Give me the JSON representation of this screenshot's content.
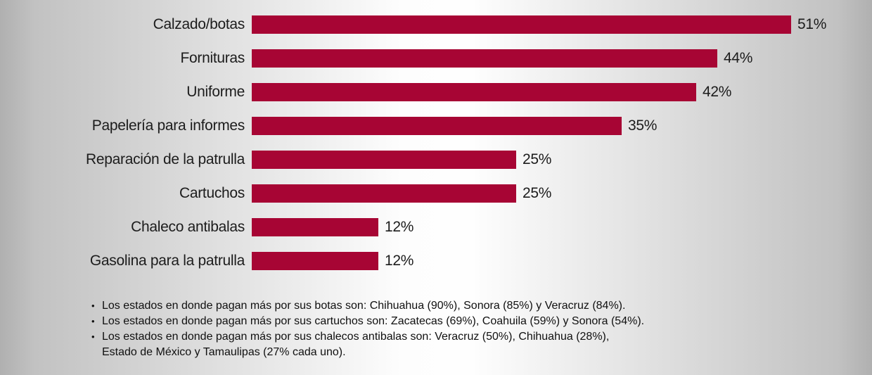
{
  "chart_data": {
    "type": "bar",
    "orientation": "horizontal",
    "title": "",
    "xlabel": "",
    "ylabel": "",
    "categories": [
      "Calzado/botas",
      "Fornituras",
      "Uniforme",
      "Papelería para informes",
      "Reparación de la patrulla",
      "Cartuchos",
      "Chaleco antibalas",
      "Gasolina para la patrulla"
    ],
    "values": [
      51,
      44,
      42,
      35,
      25,
      25,
      12,
      12
    ],
    "value_labels": [
      "51%",
      "44%",
      "42%",
      "35%",
      "25%",
      "25%",
      "12%",
      "12%"
    ],
    "xlim": [
      0,
      51
    ],
    "grid": false,
    "legend": false,
    "bar_color": "#a70534"
  },
  "notes": {
    "bullet_glyph": "•",
    "bullets": [
      {
        "text": "Los estados en donde pagan más por sus botas son: Chihuahua (90%), Sonora (85%) y Veracruz (84%)."
      },
      {
        "text": "Los estados en donde pagan más por sus cartuchos son: Zacatecas (69%), Coahuila (59%) y Sonora (54%)."
      },
      {
        "text": "Los estados en donde pagan más por sus chalecos antibalas son: Veracruz (50%), Chihuahua (28%),",
        "text2": "Estado de México y Tamaulipas (27% cada uno)."
      }
    ]
  },
  "colors": {
    "bar": "#a70534",
    "text": "#1c1c1c",
    "background_edge": "#b4b4b4",
    "background_center": "#fefefe"
  }
}
